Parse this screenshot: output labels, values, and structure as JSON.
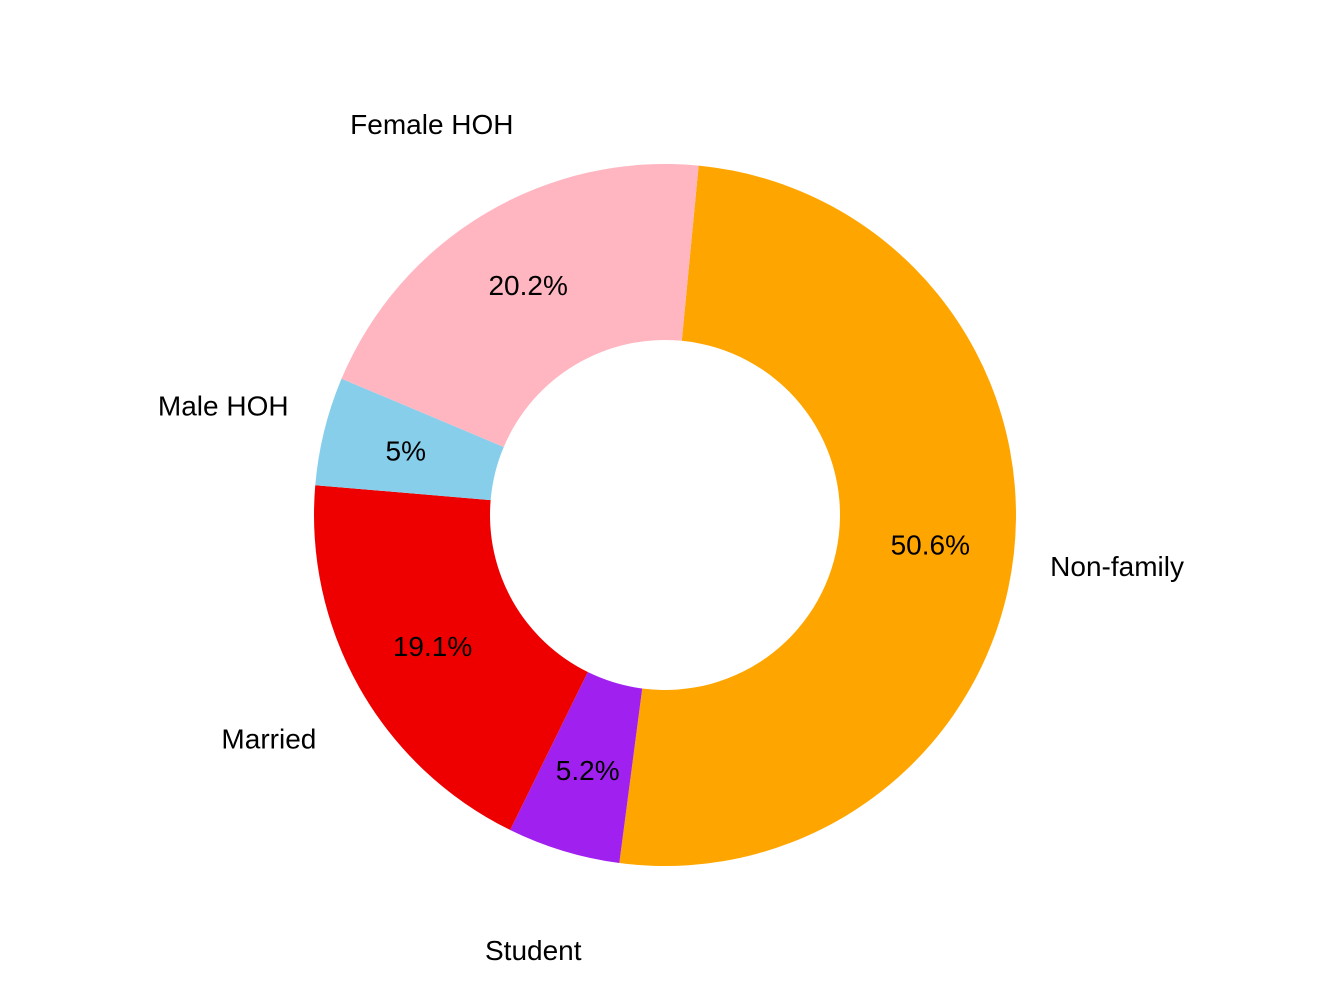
{
  "chart_data": {
    "type": "pie",
    "variant": "donut",
    "title": "",
    "slices": [
      {
        "name": "Non-family",
        "value": 50.6,
        "label": "50.6%",
        "color": "#FFA500"
      },
      {
        "name": "Student",
        "value": 5.2,
        "label": "5.2%",
        "color": "#A020F0"
      },
      {
        "name": "Married",
        "value": 19.1,
        "label": "19.1%",
        "color": "#EE0000"
      },
      {
        "name": "Male HOH",
        "value": 5.0,
        "label": "5%",
        "color": "#87CEEB"
      },
      {
        "name": "Female HOH",
        "value": 20.2,
        "label": "20.2%",
        "color": "#FFB6C1"
      }
    ],
    "legend": "none"
  }
}
